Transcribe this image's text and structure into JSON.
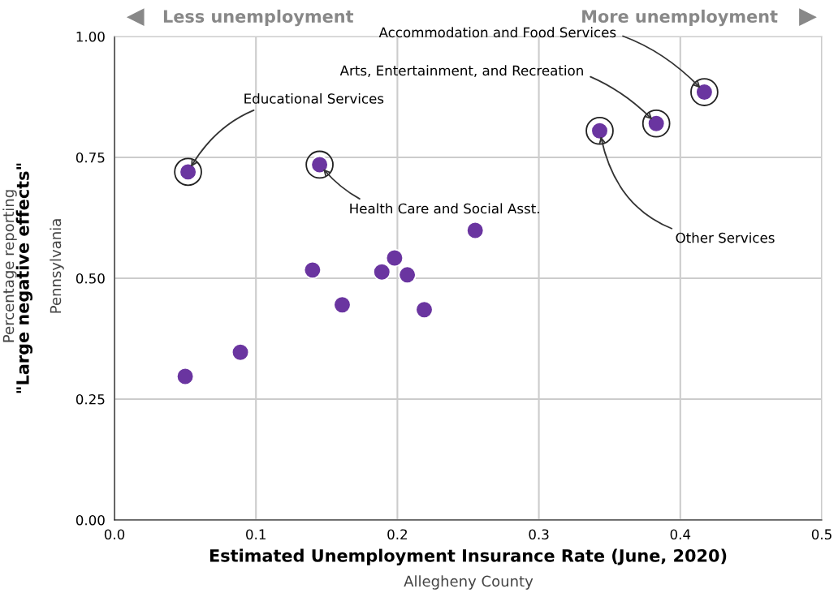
{
  "chart_data": {
    "type": "scatter",
    "xlabel": "Estimated Unemployment Insurance Rate (June, 2020)",
    "ylabel": "\"Large negative effects\"",
    "x": [
      0.052,
      0.145,
      0.343,
      0.383,
      0.417,
      0.05,
      0.089,
      0.14,
      0.161,
      0.189,
      0.198,
      0.207,
      0.219,
      0.255
    ],
    "values": [
      0.72,
      0.735,
      0.805,
      0.82,
      0.885,
      0.297,
      0.347,
      0.517,
      0.445,
      0.513,
      0.542,
      0.507,
      0.435,
      0.599
    ],
    "color": "#6a35a0",
    "marker": "circle",
    "annotations": [
      {
        "text": "Educational Services",
        "x": 0.052,
        "y": 0.72
      },
      {
        "text": "Health Care and Social Asst.",
        "x": 0.145,
        "y": 0.735
      },
      {
        "text": "Other Services",
        "x": 0.343,
        "y": 0.805
      },
      {
        "text": "Arts, Entertainment, and Recreation",
        "x": 0.383,
        "y": 0.82
      },
      {
        "text": "Accommodation and Food Services",
        "x": 0.417,
        "y": 0.885
      },
      "Less unemployment",
      "More unemployment",
      "Percentage reporting",
      "Pennsylvania",
      "Allegheny County"
    ],
    "xlim": [
      0,
      0.5
    ],
    "ylim": [
      0,
      1
    ],
    "xticks": [
      {
        "value": 0,
        "label": "0.0"
      },
      0.1,
      0.2,
      0.3,
      0.4,
      0.5
    ],
    "yticks": [
      {
        "value": 0,
        "label": "0.00"
      },
      0.25,
      {
        "value": 0.5,
        "label": "0.50"
      },
      0.75,
      {
        "value": 1,
        "label": "1.00"
      }
    ],
    "grid": true
  }
}
